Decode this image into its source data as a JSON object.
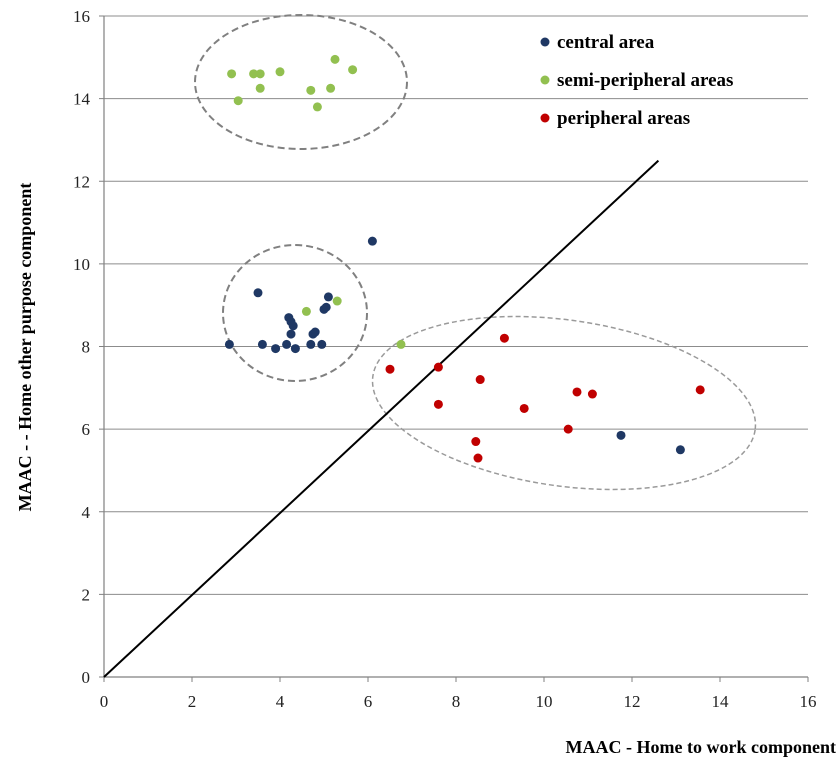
{
  "chart_data": {
    "type": "scatter",
    "title": "",
    "xlabel": "MAAC - Home to work component",
    "ylabel": "MAAC - - Home other purpose component",
    "xlim": [
      0,
      16
    ],
    "ylim": [
      0,
      16
    ],
    "x_ticks": [
      "0",
      "2",
      "4",
      "6",
      "8",
      "10",
      "12",
      "14",
      "16"
    ],
    "y_ticks": [
      "0",
      "2",
      "4",
      "6",
      "8",
      "10",
      "12",
      "14",
      "16"
    ],
    "grid": "horizontal",
    "legend_position": "top-right",
    "reference_line": {
      "from": [
        0,
        0
      ],
      "to": [
        12.6,
        12.5
      ]
    },
    "series": [
      {
        "name": "central area",
        "color": "#1f3864",
        "points": [
          [
            2.85,
            8.05
          ],
          [
            3.5,
            9.3
          ],
          [
            3.6,
            8.05
          ],
          [
            3.9,
            7.95
          ],
          [
            4.15,
            8.05
          ],
          [
            4.2,
            8.7
          ],
          [
            4.25,
            8.6
          ],
          [
            4.3,
            8.5
          ],
          [
            4.25,
            8.3
          ],
          [
            4.35,
            7.95
          ],
          [
            4.7,
            8.05
          ],
          [
            4.75,
            8.3
          ],
          [
            4.8,
            8.35
          ],
          [
            4.95,
            8.05
          ],
          [
            5.0,
            8.9
          ],
          [
            5.05,
            8.95
          ],
          [
            5.1,
            9.2
          ],
          [
            6.1,
            10.55
          ],
          [
            11.75,
            5.85
          ],
          [
            13.1,
            5.5
          ]
        ]
      },
      {
        "name": "semi-peripheral areas",
        "color": "#92c050",
        "points": [
          [
            2.9,
            14.6
          ],
          [
            3.05,
            13.95
          ],
          [
            3.4,
            14.6
          ],
          [
            3.55,
            14.6
          ],
          [
            3.55,
            14.25
          ],
          [
            4.0,
            14.65
          ],
          [
            4.7,
            14.2
          ],
          [
            4.85,
            13.8
          ],
          [
            5.15,
            14.25
          ],
          [
            5.25,
            14.95
          ],
          [
            5.65,
            14.7
          ],
          [
            4.6,
            8.85
          ],
          [
            5.3,
            9.1
          ],
          [
            6.75,
            8.05
          ]
        ]
      },
      {
        "name": "peripheral areas",
        "color": "#c00000",
        "points": [
          [
            6.5,
            7.45
          ],
          [
            7.6,
            7.5
          ],
          [
            7.6,
            6.6
          ],
          [
            8.45,
            5.7
          ],
          [
            8.5,
            5.3
          ],
          [
            8.55,
            7.2
          ],
          [
            9.1,
            8.2
          ],
          [
            9.55,
            6.5
          ],
          [
            10.55,
            6.0
          ],
          [
            10.75,
            6.9
          ],
          [
            11.1,
            6.85
          ],
          [
            13.55,
            6.95
          ]
        ]
      }
    ]
  }
}
